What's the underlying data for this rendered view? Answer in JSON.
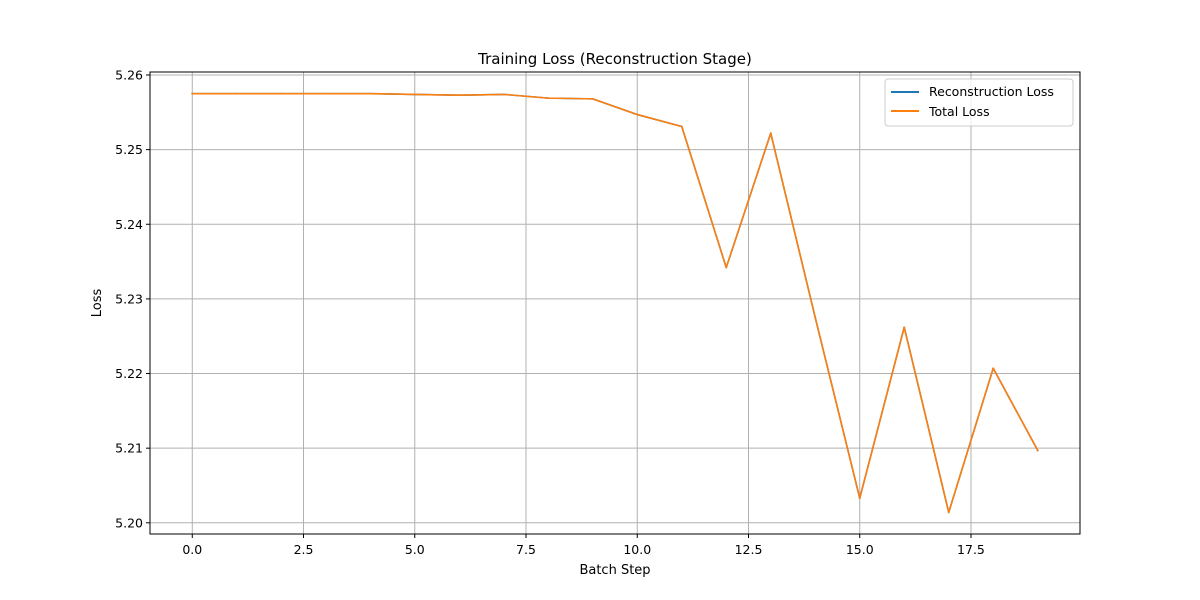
{
  "chart_data": {
    "type": "line",
    "title": "Training Loss (Reconstruction Stage)",
    "xlabel": "Batch Step",
    "ylabel": "Loss",
    "xlim": [
      -0.95,
      19.95
    ],
    "ylim": [
      5.1985,
      5.2604
    ],
    "xticks": [
      0,
      2.5,
      5,
      7.5,
      10,
      12.5,
      15,
      17.5
    ],
    "xtick_labels": [
      "0.0",
      "2.5",
      "5.0",
      "7.5",
      "10.0",
      "12.5",
      "15.0",
      "17.5"
    ],
    "yticks": [
      5.2,
      5.21,
      5.22,
      5.23,
      5.24,
      5.25,
      5.26
    ],
    "ytick_labels": [
      "5.20",
      "5.21",
      "5.22",
      "5.23",
      "5.24",
      "5.25",
      "5.26"
    ],
    "grid": true,
    "legend_position": "upper right",
    "x": [
      0,
      1,
      2,
      3,
      4,
      5,
      6,
      7,
      8,
      9,
      10,
      11,
      12,
      13,
      14,
      15,
      16,
      17,
      18,
      19
    ],
    "series": [
      {
        "name": "Reconstruction Loss",
        "color": "#1f77b4",
        "values": [
          5.2575,
          5.2575,
          5.2575,
          5.2575,
          5.2575,
          5.2574,
          5.2573,
          5.2574,
          5.2569,
          5.2568,
          5.2547,
          5.2531,
          5.2342,
          5.2522,
          5.2275,
          5.2033,
          5.2262,
          5.2014,
          5.2207,
          5.2097
        ]
      },
      {
        "name": "Total Loss",
        "color": "#ff7f0e",
        "values": [
          5.2575,
          5.2575,
          5.2575,
          5.2575,
          5.2575,
          5.2574,
          5.2573,
          5.2574,
          5.2569,
          5.2568,
          5.2547,
          5.2531,
          5.2342,
          5.2522,
          5.2275,
          5.2033,
          5.2262,
          5.2014,
          5.2207,
          5.2097
        ]
      }
    ]
  }
}
